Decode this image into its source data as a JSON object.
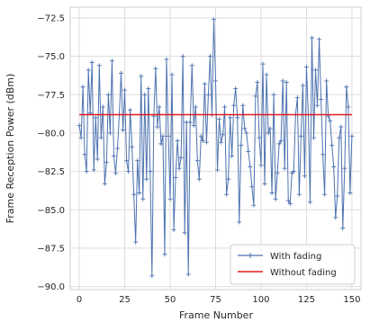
{
  "chart_data": {
    "type": "line",
    "xlabel": "Frame Number",
    "ylabel": "Frame Reception Power (dBm)",
    "xlim": [
      -5,
      155
    ],
    "ylim": [
      -90.2,
      -71.8
    ],
    "x_ticks": [
      0,
      25,
      50,
      75,
      100,
      125,
      150
    ],
    "y_ticks": [
      -90.0,
      -87.5,
      -85.0,
      -82.5,
      -80.0,
      -77.5,
      -75.0,
      -72.5
    ],
    "x_tick_labels": [
      "0",
      "25",
      "50",
      "75",
      "100",
      "125",
      "150"
    ],
    "y_tick_labels": [
      "−90.0",
      "−87.5",
      "−85.0",
      "−82.5",
      "−80.0",
      "−77.5",
      "−75.0",
      "−72.5"
    ],
    "grid": true,
    "legend_position": "bottom-right",
    "series": [
      {
        "name": "With fading",
        "color": "#4c72b0",
        "marker": "plus",
        "x_start": 0,
        "x_step": 1,
        "values": [
          -79.5,
          -80.3,
          -77.0,
          -81.4,
          -82.5,
          -75.9,
          -78.7,
          -75.4,
          -82.4,
          -79.0,
          -81.7,
          -75.6,
          -80.3,
          -78.3,
          -83.3,
          -81.9,
          -77.5,
          -80.0,
          -75.3,
          -81.5,
          -82.6,
          -81.0,
          -78.8,
          -76.1,
          -79.8,
          -77.2,
          -81.8,
          -82.5,
          -78.5,
          -80.9,
          -84.0,
          -87.1,
          -81.8,
          -83.9,
          -76.3,
          -84.3,
          -77.5,
          -83.0,
          -77.1,
          -82.5,
          -89.3,
          -78.9,
          -75.8,
          -79.6,
          -78.3,
          -80.7,
          -80.2,
          -87.9,
          -75.2,
          -80.2,
          -84.3,
          -76.2,
          -86.3,
          -82.9,
          -80.5,
          -82.3,
          -81.6,
          -75.0,
          -86.5,
          -79.3,
          -89.2,
          -79.3,
          -75.6,
          -79.5,
          -78.3,
          -81.8,
          -83.0,
          -80.2,
          -80.5,
          -76.8,
          -80.6,
          -77.5,
          -75.0,
          -78.8,
          -72.6,
          -76.6,
          -82.4,
          -79.1,
          -80.6,
          -80.1,
          -78.3,
          -84.0,
          -83.0,
          -79.0,
          -81.5,
          -78.2,
          -77.1,
          -79.0,
          -85.8,
          -80.8,
          -78.2,
          -79.7,
          -80.0,
          -81.2,
          -82.2,
          -83.5,
          -84.7,
          -77.6,
          -76.7,
          -80.3,
          -82.1,
          -75.5,
          -83.3,
          -76.2,
          -80.0,
          -79.7,
          -83.9,
          -77.5,
          -84.3,
          -82.6,
          -80.7,
          -80.5,
          -76.6,
          -82.3,
          -76.7,
          -84.4,
          -84.6,
          -82.6,
          -82.5,
          -78.8,
          -77.7,
          -84.0,
          -80.2,
          -76.9,
          -82.8,
          -75.7,
          -78.8,
          -84.5,
          -73.8,
          -80.3,
          -75.9,
          -78.2,
          -73.9,
          -77.8,
          -81.4,
          -84.0,
          -76.6,
          -78.9,
          -79.2,
          -80.8,
          -82.2,
          -85.5,
          -84.1,
          -80.3,
          -79.6,
          -86.2,
          -82.3,
          -77.0,
          -78.3,
          -83.9,
          -80.2
        ]
      },
      {
        "name": "Without fading",
        "color": "#e31a1c",
        "marker": "none",
        "x": [
          0,
          150
        ],
        "values": [
          -78.8,
          -78.8
        ]
      }
    ]
  }
}
